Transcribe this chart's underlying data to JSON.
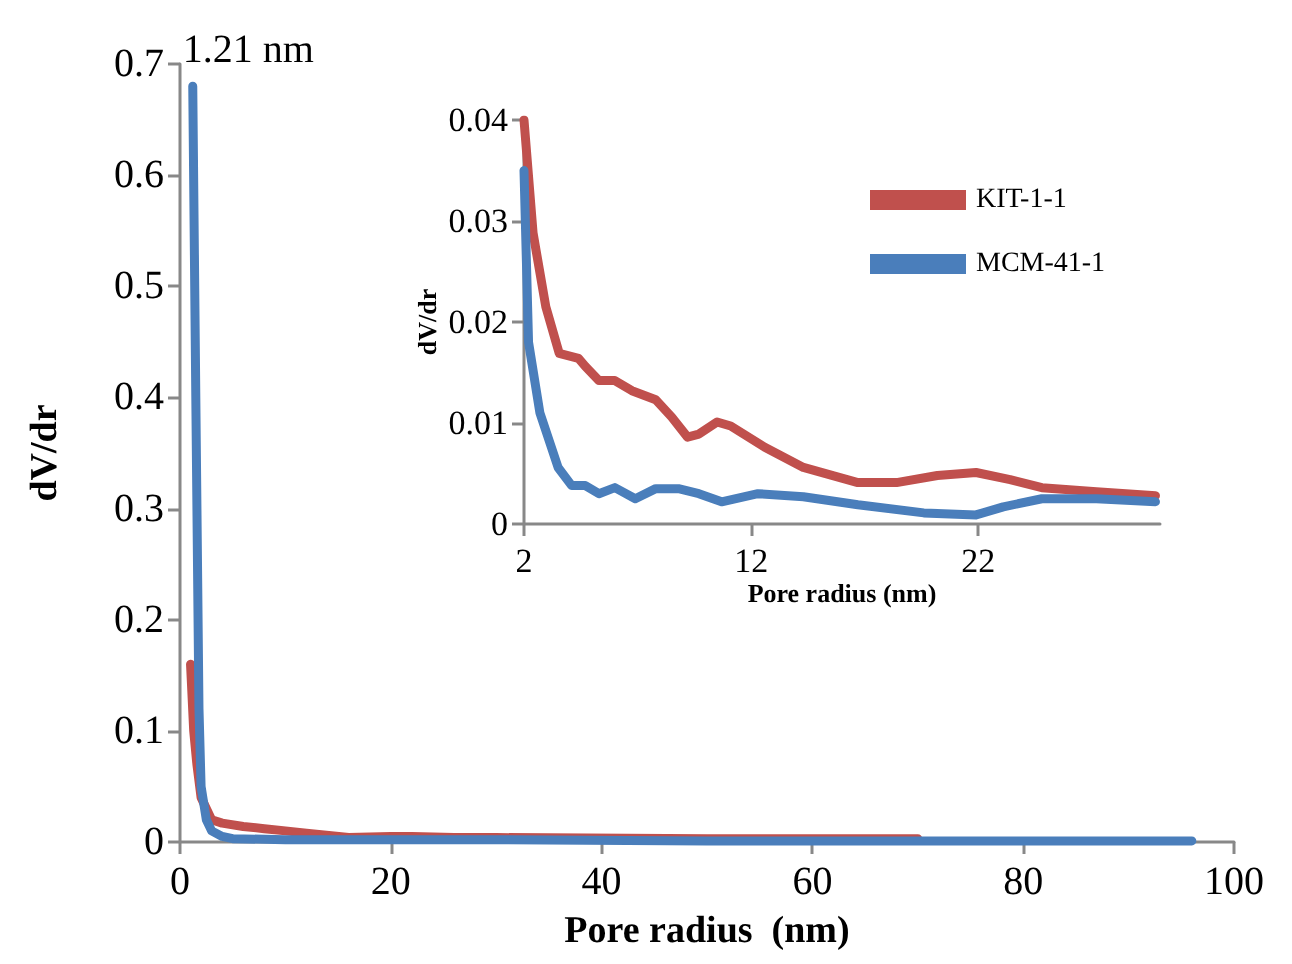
{
  "chart_data": [
    {
      "type": "line",
      "xlabel": "Pore radius  (nm)",
      "ylabel": "dV/dr",
      "xlim": [
        0,
        100
      ],
      "xticks": [
        0,
        20,
        40,
        60,
        80,
        100
      ],
      "ylim": [
        0,
        0.7
      ],
      "yticks": [
        0,
        0.1,
        0.2,
        0.3,
        0.4,
        0.5,
        0.6,
        0.7
      ],
      "marker": "none",
      "annotations": [
        {
          "text": "1.21 nm",
          "x": 1.21,
          "y": 0.68
        }
      ],
      "series": [
        {
          "color": "#c0504d",
          "x": [
            1.0,
            1.3,
            1.6,
            2,
            3,
            4,
            6,
            8,
            10,
            12,
            16,
            20,
            22,
            26,
            30,
            50,
            70
          ],
          "values": [
            0.16,
            0.1,
            0.07,
            0.04,
            0.02,
            0.017,
            0.014,
            0.012,
            0.01,
            0.008,
            0.004,
            0.005,
            0.005,
            0.004,
            0.004,
            0.003,
            0.003
          ]
        },
        {
          "color": "#4a7ebb",
          "x": [
            1.21,
            1.5,
            1.8,
            2,
            2.5,
            3,
            4,
            5,
            10,
            20,
            30,
            50,
            70,
            96
          ],
          "values": [
            0.68,
            0.4,
            0.12,
            0.05,
            0.02,
            0.01,
            0.005,
            0.003,
            0.002,
            0.002,
            0.002,
            0.001,
            0.001,
            0.001
          ]
        }
      ]
    },
    {
      "type": "line",
      "xlabel": "Pore radius (nm)",
      "ylabel": "dV/dr",
      "xlim": [
        2,
        30
      ],
      "xticks": [
        2,
        12,
        22
      ],
      "ylim": [
        0,
        0.04
      ],
      "yticks": [
        0,
        0.01,
        0.02,
        0.03,
        0.04
      ],
      "marker": "none",
      "legend": "top right",
      "series": [
        {
          "name": "KIT-1-1",
          "color": "#c0504d",
          "x": [
            2,
            2.4,
            2.96,
            3.55,
            4.4,
            4.7,
            5.3,
            6.0,
            6.75,
            7.8,
            8.5,
            9.2,
            9.7,
            10.5,
            11.1,
            12.6,
            14.3,
            16.7,
            18.4,
            20.2,
            21.9,
            23.4,
            24.8,
            27.2,
            29.8
          ],
          "values": [
            0.04,
            0.0288,
            0.0215,
            0.0169,
            0.0164,
            0.0156,
            0.0142,
            0.0142,
            0.0132,
            0.0123,
            0.0106,
            0.0086,
            0.0089,
            0.0101,
            0.0097,
            0.0076,
            0.0056,
            0.0041,
            0.0041,
            0.0048,
            0.0051,
            0.0044,
            0.0036,
            0.0032,
            0.0028
          ]
        },
        {
          "name": "MCM-41-1",
          "color": "#4a7ebb",
          "x": [
            2,
            2.2,
            2.7,
            3.5,
            4.1,
            4.7,
            5.3,
            6.0,
            6.9,
            7.8,
            8.8,
            9.7,
            10.7,
            12.3,
            14.3,
            16.7,
            19.6,
            21.9,
            23.1,
            24.8,
            27.2,
            29.8
          ],
          "values": [
            0.035,
            0.018,
            0.011,
            0.0056,
            0.0038,
            0.0038,
            0.003,
            0.0036,
            0.0025,
            0.0035,
            0.0035,
            0.003,
            0.0022,
            0.003,
            0.0027,
            0.0019,
            0.0011,
            0.0009,
            0.0017,
            0.0025,
            0.0025,
            0.0022
          ]
        }
      ]
    }
  ]
}
